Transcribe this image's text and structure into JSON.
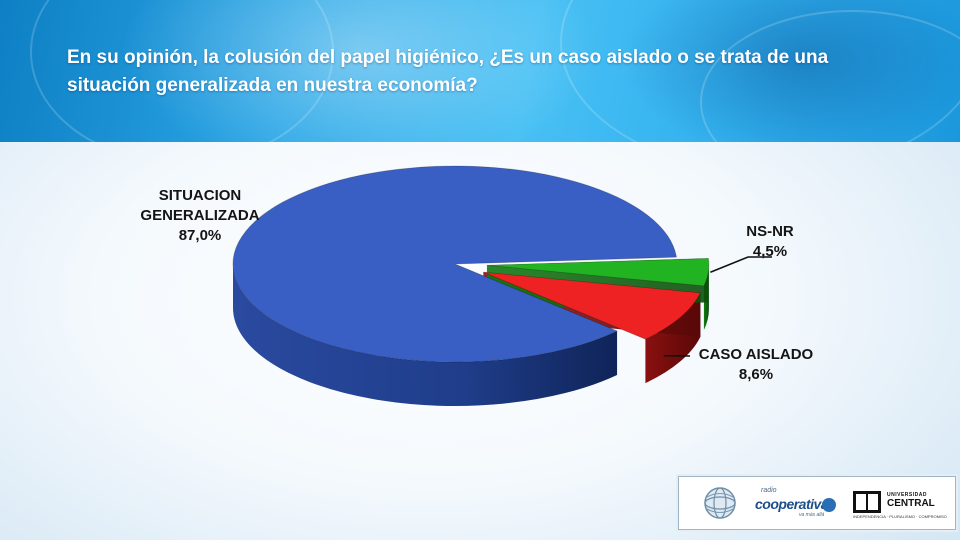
{
  "slide": {
    "title": "En su opinión, la colusión del papel higiénico, ¿Es un caso aislado o  se trata de una situación generalizada en nuestra economía?",
    "colors": {
      "header": "#2aa6e6",
      "title_text": "#ffffff"
    }
  },
  "chart_data": {
    "type": "pie",
    "title": "",
    "style": "3d",
    "units": "%",
    "legend": "none",
    "slices": [
      {
        "label": "SITUACION GENERALIZADA",
        "value": 87.0,
        "display": "87,0%",
        "color": "#3a5fc4",
        "exploded": false
      },
      {
        "label": "NS-NR",
        "value": 4.5,
        "display": "4,5%",
        "color": "#22b322",
        "exploded": true
      },
      {
        "label": "CASO AISLADO",
        "value": 8.6,
        "display": "8,6%",
        "color": "#ee2222",
        "exploded": true
      }
    ]
  },
  "logos": {
    "globe": {
      "icon": "globe-icon"
    },
    "cooperativa": {
      "tagline_top": "radio",
      "name": "cooperativa",
      "tagline": "va más allá"
    },
    "universidad": {
      "top": "UNIVERSIDAD",
      "name": "CENTRAL",
      "motto": "INDEPENDENCIA · PLURALISMO · COMPROMISO"
    }
  }
}
